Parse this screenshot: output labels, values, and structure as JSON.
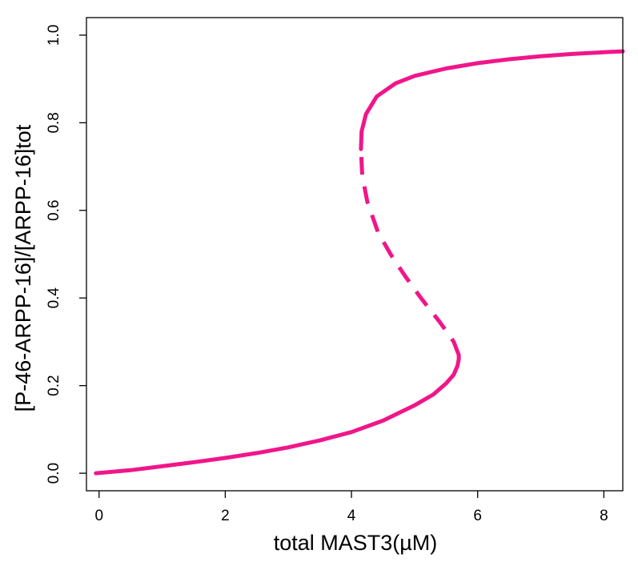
{
  "chart_data": {
    "type": "line",
    "title": "",
    "xlabel": "total MAST3(µM)",
    "ylabel": "[P-46-ARPP-16]/[ARPP-16]tot",
    "xlim": [
      -0.2,
      8.3
    ],
    "ylim": [
      -0.04,
      1.04
    ],
    "x_ticks": [
      "0",
      "2",
      "4",
      "6",
      "8"
    ],
    "y_ticks": [
      "0.0",
      "0.2",
      "0.4",
      "0.6",
      "0.8",
      "1.0"
    ],
    "grid": false,
    "legend": "none",
    "color": "#f0168a",
    "series": [
      {
        "style": "solid",
        "points": [
          [
            -0.05,
            0.0
          ],
          [
            0.5,
            0.007
          ],
          [
            1.0,
            0.016
          ],
          [
            1.5,
            0.025
          ],
          [
            2.0,
            0.035
          ],
          [
            2.5,
            0.046
          ],
          [
            3.0,
            0.059
          ],
          [
            3.5,
            0.075
          ],
          [
            4.0,
            0.094
          ],
          [
            4.5,
            0.12
          ],
          [
            5.0,
            0.155
          ],
          [
            5.3,
            0.18
          ],
          [
            5.5,
            0.205
          ],
          [
            5.62,
            0.225
          ],
          [
            5.68,
            0.245
          ],
          [
            5.7,
            0.26
          ],
          [
            5.7,
            0.27
          ]
        ]
      },
      {
        "style": "dashed",
        "points": [
          [
            5.7,
            0.27
          ],
          [
            5.62,
            0.3
          ],
          [
            5.4,
            0.345
          ],
          [
            5.1,
            0.4
          ],
          [
            4.85,
            0.45
          ],
          [
            4.62,
            0.5
          ],
          [
            4.42,
            0.55
          ],
          [
            4.25,
            0.62
          ],
          [
            4.17,
            0.68
          ],
          [
            4.15,
            0.74
          ]
        ]
      },
      {
        "style": "solid",
        "points": [
          [
            4.15,
            0.74
          ],
          [
            4.16,
            0.78
          ],
          [
            4.23,
            0.82
          ],
          [
            4.4,
            0.86
          ],
          [
            4.7,
            0.89
          ],
          [
            5.0,
            0.907
          ],
          [
            5.5,
            0.924
          ],
          [
            6.0,
            0.936
          ],
          [
            6.5,
            0.945
          ],
          [
            7.0,
            0.952
          ],
          [
            7.5,
            0.957
          ],
          [
            8.0,
            0.961
          ],
          [
            8.3,
            0.963
          ]
        ]
      }
    ]
  }
}
